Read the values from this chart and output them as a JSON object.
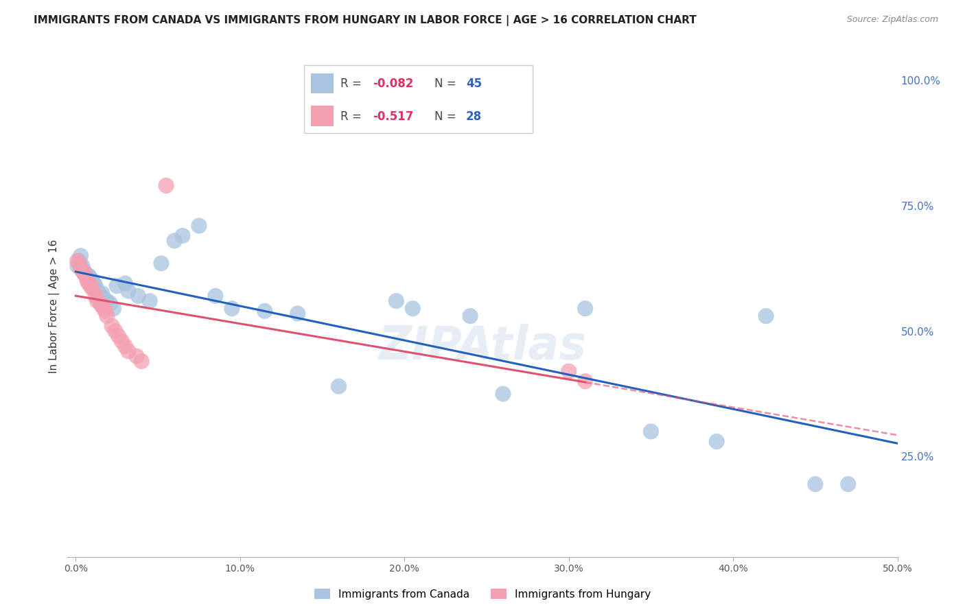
{
  "title": "IMMIGRANTS FROM CANADA VS IMMIGRANTS FROM HUNGARY IN LABOR FORCE | AGE > 16 CORRELATION CHART",
  "source": "Source: ZipAtlas.com",
  "ylabel": "In Labor Force | Age > 16",
  "x_tick_labels": [
    "0.0%",
    "10.0%",
    "20.0%",
    "30.0%",
    "40.0%",
    "50.0%"
  ],
  "x_tick_values": [
    0.0,
    0.1,
    0.2,
    0.3,
    0.4,
    0.5
  ],
  "y_tick_labels_right": [
    "100.0%",
    "75.0%",
    "50.0%",
    "25.0%"
  ],
  "y_tick_values": [
    1.0,
    0.75,
    0.5,
    0.25
  ],
  "xlim": [
    -0.005,
    0.5
  ],
  "ylim": [
    0.05,
    1.05
  ],
  "canada_R": -0.082,
  "canada_N": 45,
  "hungary_R": -0.517,
  "hungary_N": 28,
  "color_canada": "#a8c4e0",
  "color_hungary": "#f4a0b0",
  "color_canada_line": "#2060c0",
  "color_hungary_line": "#e05070",
  "background_color": "#ffffff",
  "grid_color": "#cccccc",
  "watermark": "ZIPAtlas",
  "canada_x": [
    0.001,
    0.002,
    0.003,
    0.004,
    0.005,
    0.006,
    0.007,
    0.008,
    0.009,
    0.01,
    0.011,
    0.012,
    0.013,
    0.014,
    0.015,
    0.016,
    0.017,
    0.018,
    0.019,
    0.021,
    0.023,
    0.025,
    0.03,
    0.032,
    0.038,
    0.045,
    0.052,
    0.06,
    0.065,
    0.075,
    0.085,
    0.095,
    0.115,
    0.135,
    0.16,
    0.195,
    0.205,
    0.24,
    0.26,
    0.31,
    0.35,
    0.39,
    0.42,
    0.45,
    0.47
  ],
  "canada_y": [
    0.63,
    0.64,
    0.65,
    0.63,
    0.62,
    0.615,
    0.61,
    0.61,
    0.605,
    0.6,
    0.595,
    0.59,
    0.58,
    0.575,
    0.57,
    0.575,
    0.565,
    0.56,
    0.56,
    0.555,
    0.545,
    0.59,
    0.595,
    0.58,
    0.57,
    0.56,
    0.635,
    0.68,
    0.69,
    0.71,
    0.57,
    0.545,
    0.54,
    0.535,
    0.39,
    0.56,
    0.545,
    0.53,
    0.375,
    0.545,
    0.3,
    0.28,
    0.53,
    0.195,
    0.195
  ],
  "hungary_x": [
    0.001,
    0.002,
    0.003,
    0.004,
    0.005,
    0.006,
    0.007,
    0.008,
    0.009,
    0.01,
    0.012,
    0.013,
    0.015,
    0.016,
    0.017,
    0.018,
    0.019,
    0.022,
    0.024,
    0.026,
    0.028,
    0.03,
    0.032,
    0.037,
    0.04,
    0.055,
    0.3,
    0.31
  ],
  "hungary_y": [
    0.64,
    0.635,
    0.625,
    0.62,
    0.615,
    0.61,
    0.6,
    0.595,
    0.59,
    0.585,
    0.57,
    0.56,
    0.555,
    0.55,
    0.545,
    0.54,
    0.53,
    0.51,
    0.5,
    0.49,
    0.48,
    0.47,
    0.46,
    0.45,
    0.44,
    0.79,
    0.42,
    0.4
  ],
  "title_fontsize": 11,
  "axis_label_fontsize": 11,
  "tick_fontsize": 10,
  "legend_fontsize": 13
}
